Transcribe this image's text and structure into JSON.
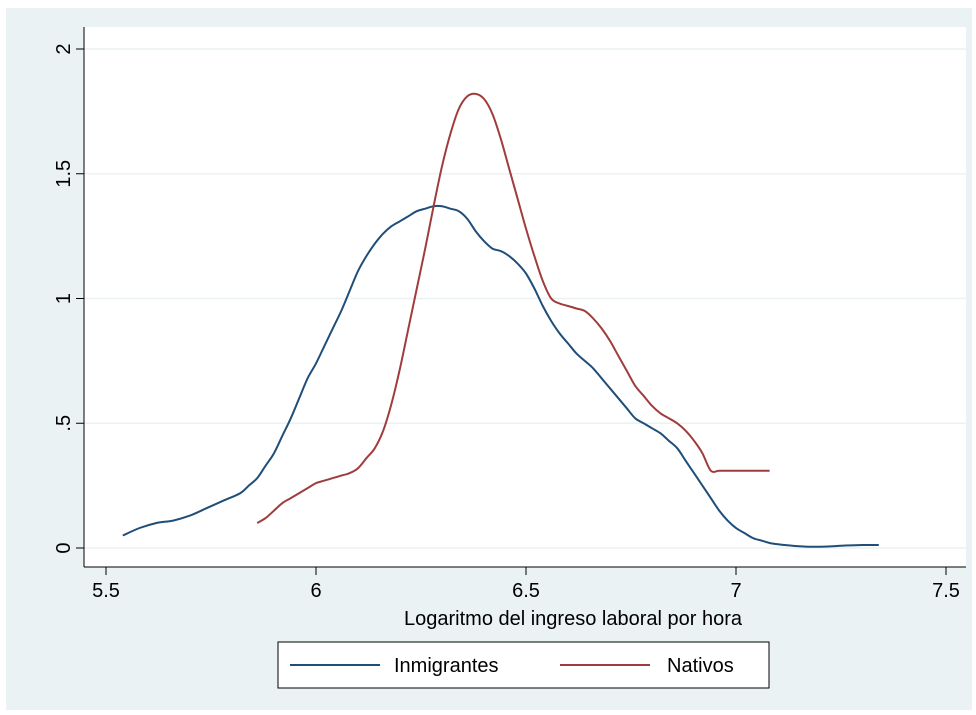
{
  "chart_data": {
    "type": "line",
    "xlabel": "Logaritmo del ingreso laboral por hora",
    "ylabel": "",
    "xlim": [
      5.5,
      7.5
    ],
    "ylim": [
      0,
      2
    ],
    "x_ticks": [
      5.5,
      6,
      6.5,
      7,
      7.5
    ],
    "x_tick_labels": [
      "5.5",
      "6",
      "6.5",
      "7",
      "7.5"
    ],
    "y_ticks": [
      0,
      0.5,
      1,
      1.5,
      2
    ],
    "y_tick_labels": [
      "0",
      ".5",
      "1",
      "1.5",
      "2"
    ],
    "grid": "horizontal",
    "legend_position": "bottom",
    "series": [
      {
        "name": "Inmigrantes",
        "color": "#1f4e79",
        "x": [
          5.54,
          5.58,
          5.62,
          5.66,
          5.7,
          5.74,
          5.78,
          5.82,
          5.84,
          5.86,
          5.88,
          5.9,
          5.92,
          5.94,
          5.96,
          5.98,
          6.0,
          6.02,
          6.04,
          6.06,
          6.08,
          6.1,
          6.12,
          6.14,
          6.16,
          6.18,
          6.2,
          6.22,
          6.24,
          6.26,
          6.28,
          6.3,
          6.32,
          6.34,
          6.36,
          6.38,
          6.4,
          6.42,
          6.44,
          6.46,
          6.48,
          6.5,
          6.52,
          6.54,
          6.56,
          6.58,
          6.6,
          6.62,
          6.64,
          6.66,
          6.68,
          6.7,
          6.72,
          6.74,
          6.76,
          6.78,
          6.8,
          6.82,
          6.84,
          6.86,
          6.88,
          6.9,
          6.92,
          6.94,
          6.96,
          6.98,
          7.0,
          7.02,
          7.04,
          7.06,
          7.08,
          7.1,
          7.14,
          7.18,
          7.22,
          7.26,
          7.3,
          7.34
        ],
        "values": [
          0.05,
          0.08,
          0.1,
          0.11,
          0.13,
          0.16,
          0.19,
          0.22,
          0.25,
          0.28,
          0.33,
          0.38,
          0.45,
          0.52,
          0.6,
          0.68,
          0.74,
          0.81,
          0.88,
          0.95,
          1.03,
          1.11,
          1.17,
          1.22,
          1.26,
          1.29,
          1.31,
          1.33,
          1.35,
          1.36,
          1.37,
          1.37,
          1.36,
          1.35,
          1.32,
          1.27,
          1.23,
          1.2,
          1.19,
          1.17,
          1.14,
          1.1,
          1.04,
          0.97,
          0.91,
          0.86,
          0.82,
          0.78,
          0.75,
          0.72,
          0.68,
          0.64,
          0.6,
          0.56,
          0.52,
          0.5,
          0.48,
          0.46,
          0.43,
          0.4,
          0.35,
          0.3,
          0.25,
          0.2,
          0.15,
          0.11,
          0.08,
          0.06,
          0.04,
          0.03,
          0.02,
          0.015,
          0.008,
          0.005,
          0.006,
          0.01,
          0.012,
          0.012
        ]
      },
      {
        "name": "Nativos",
        "color": "#a03c3c",
        "x": [
          5.86,
          5.88,
          5.9,
          5.92,
          5.94,
          5.96,
          5.98,
          6.0,
          6.02,
          6.04,
          6.06,
          6.08,
          6.1,
          6.12,
          6.14,
          6.16,
          6.18,
          6.2,
          6.22,
          6.24,
          6.26,
          6.28,
          6.3,
          6.32,
          6.34,
          6.36,
          6.38,
          6.4,
          6.42,
          6.44,
          6.46,
          6.48,
          6.5,
          6.52,
          6.54,
          6.56,
          6.58,
          6.6,
          6.62,
          6.64,
          6.66,
          6.68,
          6.7,
          6.72,
          6.74,
          6.76,
          6.78,
          6.8,
          6.82,
          6.84,
          6.86,
          6.88,
          6.9,
          6.92,
          6.94,
          6.96,
          6.98,
          7.0,
          7.02,
          7.04,
          7.06,
          7.08
        ],
        "values": [
          0.1,
          0.12,
          0.15,
          0.18,
          0.2,
          0.22,
          0.24,
          0.26,
          0.27,
          0.28,
          0.29,
          0.3,
          0.32,
          0.36,
          0.4,
          0.47,
          0.58,
          0.72,
          0.88,
          1.04,
          1.2,
          1.37,
          1.53,
          1.66,
          1.76,
          1.81,
          1.82,
          1.8,
          1.74,
          1.64,
          1.52,
          1.4,
          1.28,
          1.17,
          1.07,
          1.0,
          0.98,
          0.97,
          0.96,
          0.95,
          0.92,
          0.88,
          0.83,
          0.77,
          0.71,
          0.65,
          0.61,
          0.57,
          0.54,
          0.52,
          0.5,
          0.47,
          0.43,
          0.38,
          0.31,
          0.31,
          0.31,
          0.31,
          0.31,
          0.31,
          0.31,
          0.31
        ]
      }
    ]
  }
}
